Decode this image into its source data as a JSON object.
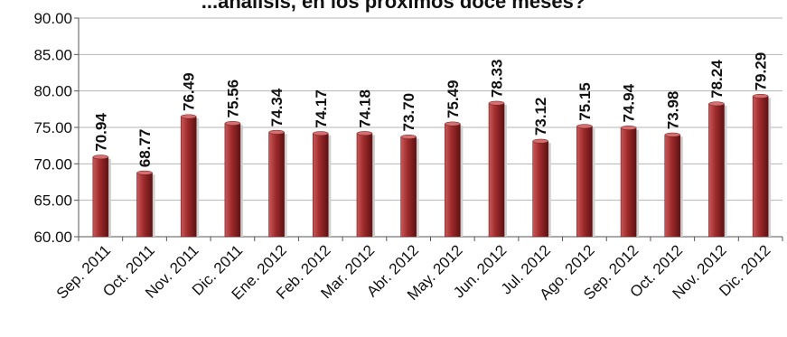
{
  "chart_data": {
    "type": "bar",
    "title": "...análisis, en los próximos doce meses?",
    "xlabel": "",
    "ylabel": "",
    "categories": [
      "Sep. 2011",
      "Oct. 2011",
      "Nov. 2011",
      "Dic. 2011",
      "Ene. 2012",
      "Feb. 2012",
      "Mar. 2012",
      "Abr. 2012",
      "May. 2012",
      "Jun. 2012",
      "Jul. 2012",
      "Ago. 2012",
      "Sep. 2012",
      "Oct. 2012",
      "Nov. 2012",
      "Dic. 2012"
    ],
    "series": [
      {
        "values": [
          70.94,
          68.77,
          76.49,
          75.56,
          74.34,
          74.17,
          74.18,
          73.7,
          75.49,
          78.33,
          73.12,
          75.15,
          74.94,
          73.98,
          78.24,
          79.29
        ],
        "labels": [
          "70.94",
          "68.77",
          "76.49",
          "75.56",
          "74.34",
          "74.17",
          "74.18",
          "73.70",
          "75.49",
          "78.33",
          "73.12",
          "75.15",
          "74.94",
          "73.98",
          "78.24",
          "79.29"
        ],
        "color": "#9e2a2b"
      }
    ],
    "ylim": [
      60,
      90
    ],
    "yticks": [
      "60.00",
      "65.00",
      "70.00",
      "75.00",
      "80.00",
      "85.00",
      "90.00"
    ],
    "grid": true,
    "legend": "none"
  }
}
